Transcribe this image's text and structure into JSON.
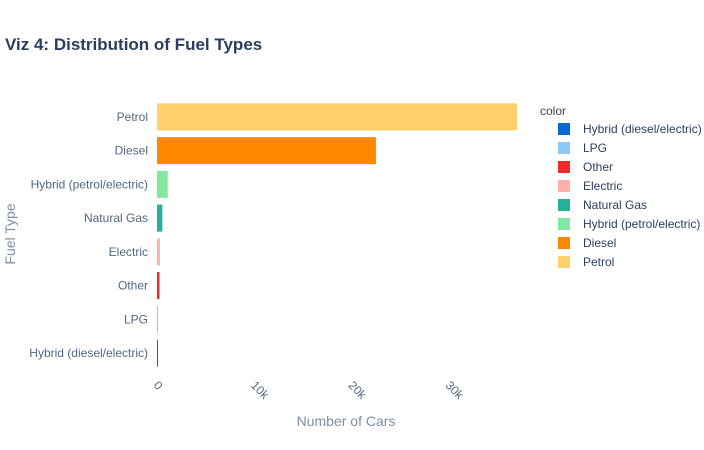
{
  "chart_data": {
    "type": "bar",
    "orientation": "horizontal",
    "title": "Viz 4: Distribution of Fuel Types",
    "xlabel": "Number of Cars",
    "ylabel": "Fuel Type",
    "xlim": [
      0,
      37000
    ],
    "x_ticks": [
      0,
      10000,
      20000,
      30000
    ],
    "x_tick_labels": [
      "0",
      "10k",
      "20k",
      "30k"
    ],
    "categories": [
      "Petrol",
      "Diesel",
      "Hybrid (petrol/electric)",
      "Natural Gas",
      "Electric",
      "Other",
      "LPG",
      "Hybrid (diesel/electric)"
    ],
    "values": [
      37000,
      22500,
      1100,
      550,
      300,
      250,
      80,
      30
    ],
    "colors": [
      "#ffd06c",
      "#ff8800",
      "#82e89d",
      "#26b298",
      "#ffb0ab",
      "#ee2a2a",
      "#8ec8f8",
      "#0a69cf"
    ],
    "legend": {
      "title": "color",
      "placement": "right",
      "items": [
        {
          "label": "Hybrid (diesel/electric)",
          "color": "#0a69cf"
        },
        {
          "label": "LPG",
          "color": "#8ec8f8"
        },
        {
          "label": "Other",
          "color": "#ee2a2a"
        },
        {
          "label": "Electric",
          "color": "#ffb0ab"
        },
        {
          "label": "Natural Gas",
          "color": "#26b298"
        },
        {
          "label": "Hybrid (petrol/electric)",
          "color": "#82e89d"
        },
        {
          "label": "Diesel",
          "color": "#ff8800"
        },
        {
          "label": "Petrol",
          "color": "#ffd06c"
        }
      ]
    },
    "grid": false
  }
}
